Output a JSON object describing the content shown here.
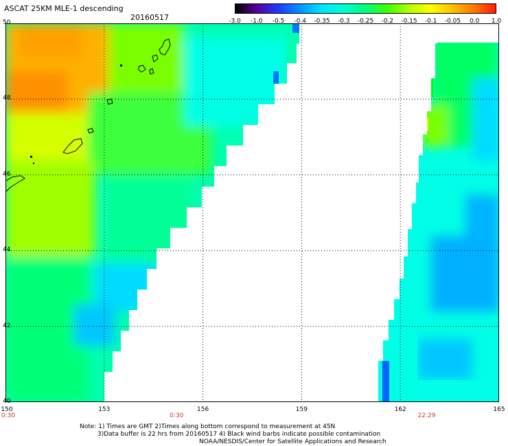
{
  "header": {
    "title": "ASCAT 25KM MLE-1 descending",
    "date": "20160517"
  },
  "colorbar": {
    "labels": [
      "-3.0",
      "-1.0",
      "-0.5",
      "-0.4",
      "-0.35",
      "-0.3",
      "-0.25",
      "-0.2",
      "-0.15",
      "-0.1",
      "-0.05",
      "0.0",
      "1.0"
    ],
    "colors": [
      "#000000",
      "#5a00a0",
      "#1e3cff",
      "#0096ff",
      "#00e6ff",
      "#00ffd2",
      "#00ff7a",
      "#3cff00",
      "#b4ff00",
      "#ffff00",
      "#ffc000",
      "#ff7800",
      "#ff1e00"
    ]
  },
  "axes": {
    "lat_labels": [
      "50",
      "48",
      "46",
      "44",
      "42",
      "40"
    ],
    "lat_values": [
      50,
      48,
      46,
      44,
      42,
      40
    ],
    "lon_labels": [
      "150",
      "153",
      "156",
      "159",
      "162",
      "165"
    ],
    "lon_values": [
      150,
      153,
      156,
      159,
      162,
      165
    ],
    "lon_range": [
      150,
      165
    ],
    "lat_range": [
      40,
      50
    ]
  },
  "times": [
    {
      "label": "0:30",
      "lon": 150
    },
    {
      "label": "0:30",
      "lon": 155.2
    },
    {
      "label": "22:29",
      "lon": 162.8
    }
  ],
  "notes": [
    "Note: 1) Times are GMT 2)Times along bottom correspond to measurement at 45N",
    "3)Data buffer is 22 hrs from 20160517 4) Black wind barbs indicate possible contamination",
    "NOAA/NESDIS/Center for Satellite Applications and Research"
  ]
}
